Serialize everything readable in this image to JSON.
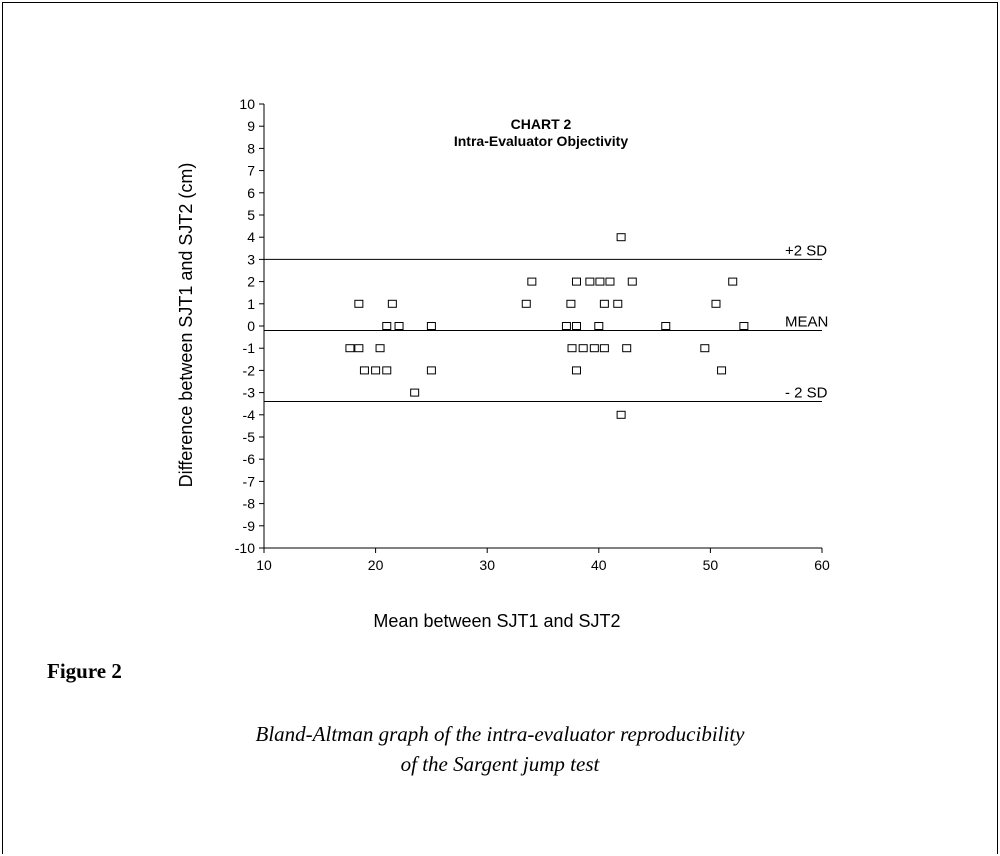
{
  "figure": {
    "label": "Figure 2",
    "caption_line1": "Bland-Altman graph of the intra-evaluator reproducibility",
    "caption_line2": "of the Sargent jump test"
  },
  "chart_data": {
    "type": "scatter",
    "title": "CHART 2",
    "subtitle": "Intra-Evaluator Objectivity",
    "xlabel": "Mean between SJT1 and SJT2",
    "ylabel": "Difference between SJT1 and SJT2 (cm)",
    "xlim": [
      10,
      60
    ],
    "ylim": [
      -10,
      10
    ],
    "xticks": [
      10,
      20,
      30,
      40,
      50,
      60
    ],
    "yticks": [
      10,
      9,
      8,
      7,
      6,
      5,
      4,
      3,
      2,
      1,
      0,
      -1,
      -2,
      -3,
      -4,
      -5,
      -6,
      -7,
      -8,
      -9,
      -10
    ],
    "marker": "open-square",
    "reference_lines": [
      {
        "label": "+2 SD",
        "y": 3.0
      },
      {
        "label": "MEAN",
        "y": -0.2
      },
      {
        "label": "- 2 SD",
        "y": -3.4
      }
    ],
    "points": [
      {
        "x": 18.5,
        "y": 1
      },
      {
        "x": 21.5,
        "y": 1
      },
      {
        "x": 33.5,
        "y": 1
      },
      {
        "x": 37.5,
        "y": 1
      },
      {
        "x": 40.5,
        "y": 1
      },
      {
        "x": 41.7,
        "y": 1
      },
      {
        "x": 50.5,
        "y": 1
      },
      {
        "x": 34.0,
        "y": 2
      },
      {
        "x": 38.0,
        "y": 2
      },
      {
        "x": 39.2,
        "y": 2
      },
      {
        "x": 40.1,
        "y": 2
      },
      {
        "x": 41.0,
        "y": 2
      },
      {
        "x": 43.0,
        "y": 2
      },
      {
        "x": 52.0,
        "y": 2
      },
      {
        "x": 42.0,
        "y": 4
      },
      {
        "x": 21.0,
        "y": 0
      },
      {
        "x": 22.1,
        "y": 0
      },
      {
        "x": 25.0,
        "y": 0
      },
      {
        "x": 37.1,
        "y": 0
      },
      {
        "x": 38.0,
        "y": 0
      },
      {
        "x": 40.0,
        "y": 0
      },
      {
        "x": 46.0,
        "y": 0
      },
      {
        "x": 53.0,
        "y": 0
      },
      {
        "x": 17.7,
        "y": -1
      },
      {
        "x": 18.5,
        "y": -1
      },
      {
        "x": 20.4,
        "y": -1
      },
      {
        "x": 37.6,
        "y": -1
      },
      {
        "x": 38.6,
        "y": -1
      },
      {
        "x": 39.6,
        "y": -1
      },
      {
        "x": 40.5,
        "y": -1
      },
      {
        "x": 42.5,
        "y": -1
      },
      {
        "x": 49.5,
        "y": -1
      },
      {
        "x": 19.0,
        "y": -2
      },
      {
        "x": 20.0,
        "y": -2
      },
      {
        "x": 21.0,
        "y": -2
      },
      {
        "x": 25.0,
        "y": -2
      },
      {
        "x": 38.0,
        "y": -2
      },
      {
        "x": 51.0,
        "y": -2
      },
      {
        "x": 23.5,
        "y": -3
      },
      {
        "x": 42.0,
        "y": -4
      }
    ]
  }
}
